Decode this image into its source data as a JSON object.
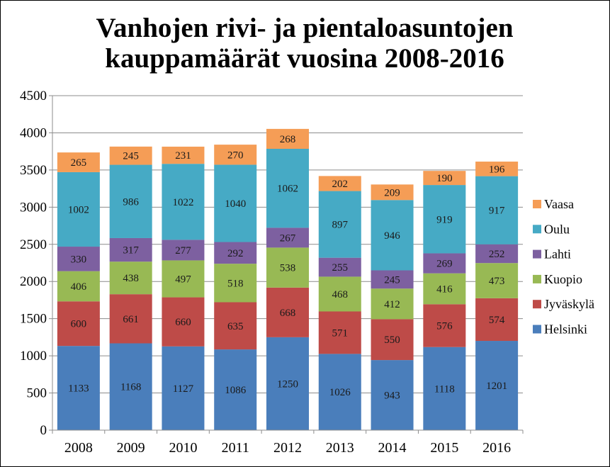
{
  "chart_data": {
    "type": "bar",
    "stacked": true,
    "title": "Vanhojen rivi- ja pientaloasuntojen kauppamäärät vuosina 2008-2016",
    "title_lines": [
      "Vanhojen rivi- ja pientaloasuntojen",
      "kauppamäärät vuosina 2008-2016"
    ],
    "categories": [
      "2008",
      "2009",
      "2010",
      "2011",
      "2012",
      "2013",
      "2014",
      "2015",
      "2016"
    ],
    "ylim": [
      0,
      4500
    ],
    "yticks": [
      "0",
      "500",
      "1000",
      "1500",
      "2000",
      "2500",
      "3000",
      "3500",
      "4000",
      "4500"
    ],
    "grid": true,
    "legend_position": "right",
    "series": [
      {
        "name": "Helsinki",
        "color": "#4A7EBB",
        "values": [
          1133,
          1168,
          1127,
          1086,
          1250,
          1026,
          943,
          1118,
          1201
        ]
      },
      {
        "name": "Jyväskylä",
        "color": "#BE4B48",
        "values": [
          600,
          661,
          660,
          635,
          668,
          571,
          550,
          576,
          574
        ]
      },
      {
        "name": "Kuopio",
        "color": "#98B954",
        "values": [
          406,
          438,
          497,
          518,
          538,
          468,
          412,
          416,
          473
        ]
      },
      {
        "name": "Lahti",
        "color": "#7D60A0",
        "values": [
          330,
          317,
          277,
          292,
          267,
          255,
          245,
          269,
          252
        ]
      },
      {
        "name": "Oulu",
        "color": "#46AAC5",
        "values": [
          1002,
          986,
          1022,
          1040,
          1062,
          897,
          946,
          919,
          917
        ]
      },
      {
        "name": "Vaasa",
        "color": "#F59D56",
        "values": [
          265,
          245,
          231,
          270,
          268,
          202,
          209,
          190,
          196
        ]
      }
    ]
  }
}
